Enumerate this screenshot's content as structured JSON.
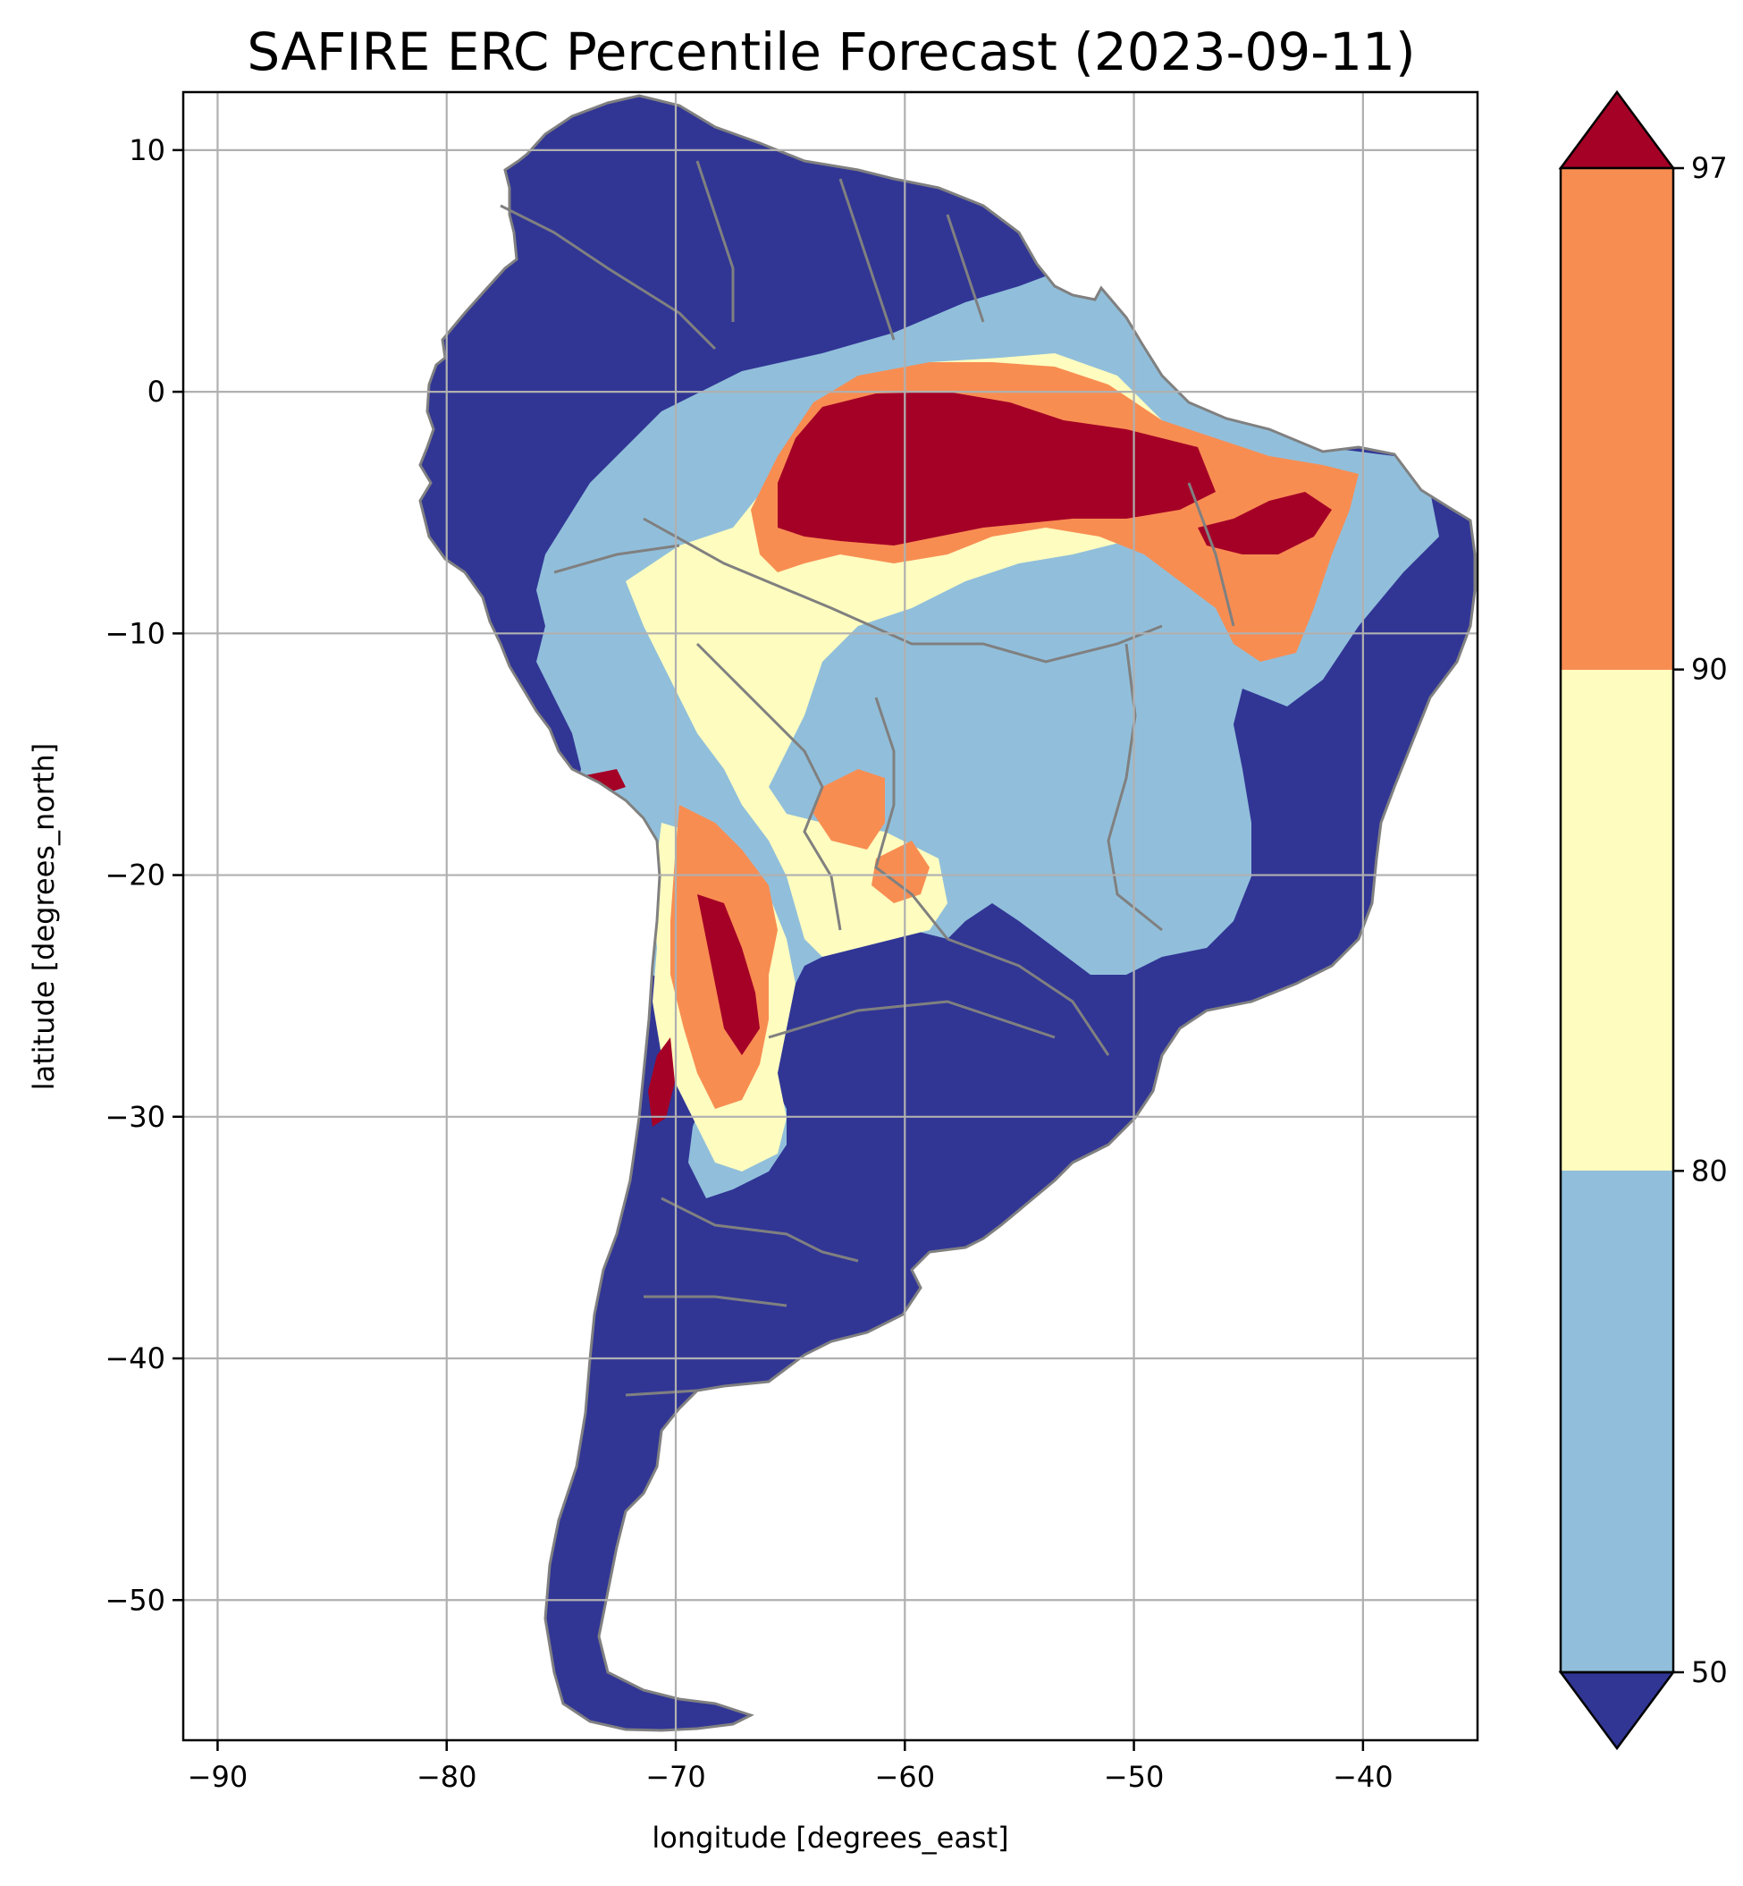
{
  "title": "SAFIRE ERC Percentile Forecast (2023-09-11)",
  "map": {
    "xlabel": "longitude [degrees_east]",
    "ylabel": "latitude [degrees_north]",
    "xlim": [
      -91.5,
      -35
    ],
    "ylim": [
      -55.8,
      12.4
    ],
    "xticks": [
      -90,
      -80,
      -70,
      -60,
      -50,
      -40
    ],
    "yticks": [
      10,
      0,
      -10,
      -20,
      -30,
      -40,
      -50
    ],
    "grid": true,
    "boundary_color": "#808080"
  },
  "colorbar": {
    "levels": [
      50,
      80,
      90,
      97
    ],
    "labels": [
      "50",
      "80",
      "90",
      "97"
    ],
    "extend": "both",
    "colors": {
      "below_50": "#313695",
      "50_80": "#91bfdb",
      "80_90": "#fefcbf",
      "90_97": "#f88d52",
      "above_97": "#a50026"
    }
  }
}
